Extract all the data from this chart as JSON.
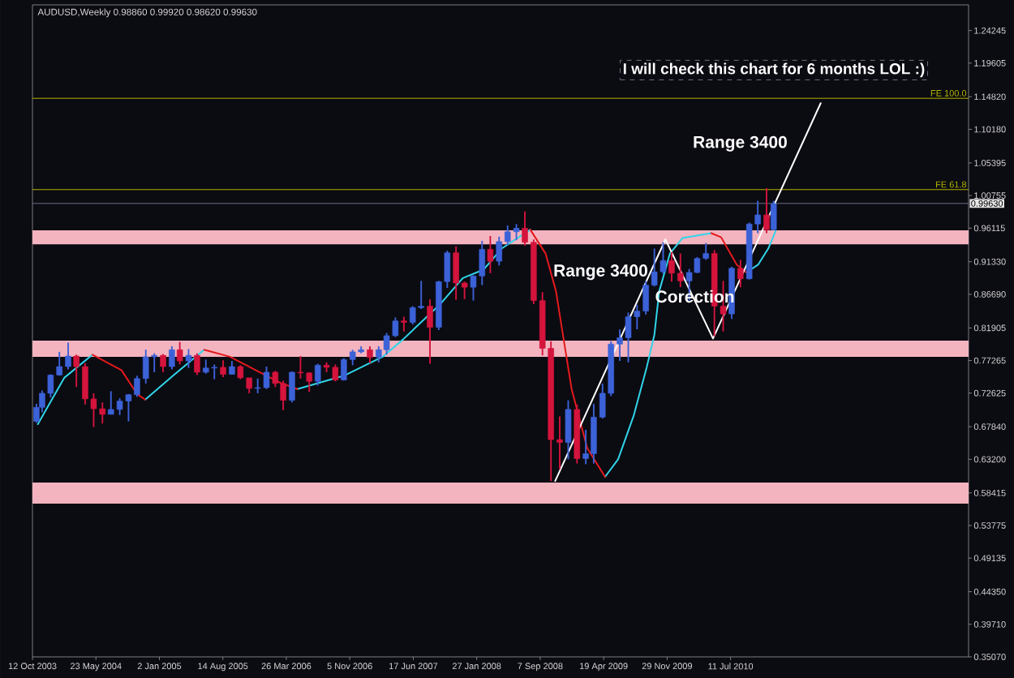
{
  "chart_data": {
    "type": "candlestick",
    "title": "AUDUSD,Weekly 0.98860 0.99920 0.98620 0.99630",
    "x": [
      "2003-10-26",
      "2003-11-15",
      "2003-12-15",
      "2004-01-15",
      "2004-02-15",
      "2004-03-15",
      "2004-04-15",
      "2004-05-15",
      "2004-06-15",
      "2004-07-15",
      "2004-08-15",
      "2004-09-15",
      "2004-10-15",
      "2004-11-15",
      "2004-12-15",
      "2005-01-15",
      "2005-02-15",
      "2005-03-15",
      "2005-04-15",
      "2005-05-15",
      "2005-06-15",
      "2005-07-15",
      "2005-08-15",
      "2005-09-15",
      "2005-10-15",
      "2005-11-15",
      "2005-12-15",
      "2006-01-15",
      "2006-02-15",
      "2006-03-15",
      "2006-04-15",
      "2006-05-15",
      "2006-06-15",
      "2006-07-15",
      "2006-08-15",
      "2006-09-15",
      "2006-10-15",
      "2006-11-15",
      "2006-12-15",
      "2007-01-15",
      "2007-02-15",
      "2007-03-15",
      "2007-04-15",
      "2007-05-15",
      "2007-06-15",
      "2007-07-15",
      "2007-08-15",
      "2007-09-15",
      "2007-10-15",
      "2007-11-15",
      "2007-12-15",
      "2008-01-15",
      "2008-02-15",
      "2008-03-15",
      "2008-04-15",
      "2008-05-15",
      "2008-06-15",
      "2008-07-15",
      "2008-08-15",
      "2008-09-15",
      "2008-10-15",
      "2008-11-15",
      "2008-12-15",
      "2009-01-15",
      "2009-02-15",
      "2009-03-15",
      "2009-04-15",
      "2009-05-15",
      "2009-06-15",
      "2009-07-15",
      "2009-08-15",
      "2009-09-15",
      "2009-10-15",
      "2009-11-15",
      "2009-12-15",
      "2010-01-15",
      "2010-02-15",
      "2010-03-15",
      "2010-04-15",
      "2010-05-15",
      "2010-06-15",
      "2010-07-15",
      "2010-08-15",
      "2010-09-15",
      "2010-10-15",
      "2010-11-15",
      "2010-12-10"
    ],
    "ohlc": [
      [
        0.686,
        0.711,
        0.684,
        0.706
      ],
      [
        0.706,
        0.73,
        0.699,
        0.726
      ],
      [
        0.726,
        0.753,
        0.72,
        0.752
      ],
      [
        0.752,
        0.785,
        0.751,
        0.764
      ],
      [
        0.764,
        0.798,
        0.76,
        0.779
      ],
      [
        0.779,
        0.781,
        0.735,
        0.764
      ],
      [
        0.764,
        0.769,
        0.71,
        0.718
      ],
      [
        0.718,
        0.726,
        0.678,
        0.704
      ],
      [
        0.704,
        0.713,
        0.683,
        0.696
      ],
      [
        0.696,
        0.729,
        0.696,
        0.703
      ],
      [
        0.703,
        0.719,
        0.695,
        0.715
      ],
      [
        0.715,
        0.725,
        0.686,
        0.724
      ],
      [
        0.724,
        0.751,
        0.721,
        0.747
      ],
      [
        0.747,
        0.788,
        0.74,
        0.778
      ],
      [
        0.778,
        0.783,
        0.756,
        0.78
      ],
      [
        0.78,
        0.782,
        0.756,
        0.764
      ],
      [
        0.764,
        0.793,
        0.76,
        0.788
      ],
      [
        0.788,
        0.799,
        0.767,
        0.772
      ],
      [
        0.772,
        0.789,
        0.762,
        0.78
      ],
      [
        0.78,
        0.783,
        0.752,
        0.756
      ],
      [
        0.756,
        0.774,
        0.754,
        0.762
      ],
      [
        0.762,
        0.767,
        0.746,
        0.763
      ],
      [
        0.763,
        0.773,
        0.749,
        0.753
      ],
      [
        0.753,
        0.772,
        0.753,
        0.764
      ],
      [
        0.764,
        0.766,
        0.746,
        0.748
      ],
      [
        0.748,
        0.748,
        0.726,
        0.733
      ],
      [
        0.733,
        0.747,
        0.726,
        0.734
      ],
      [
        0.734,
        0.764,
        0.732,
        0.756
      ],
      [
        0.756,
        0.758,
        0.735,
        0.74
      ],
      [
        0.74,
        0.744,
        0.702,
        0.716
      ],
      [
        0.716,
        0.757,
        0.713,
        0.756
      ],
      [
        0.756,
        0.779,
        0.747,
        0.755
      ],
      [
        0.755,
        0.756,
        0.728,
        0.743
      ],
      [
        0.743,
        0.768,
        0.737,
        0.766
      ],
      [
        0.766,
        0.77,
        0.756,
        0.763
      ],
      [
        0.763,
        0.767,
        0.743,
        0.745
      ],
      [
        0.745,
        0.776,
        0.744,
        0.774
      ],
      [
        0.774,
        0.788,
        0.766,
        0.785
      ],
      [
        0.785,
        0.793,
        0.783,
        0.788
      ],
      [
        0.788,
        0.793,
        0.769,
        0.777
      ],
      [
        0.777,
        0.793,
        0.77,
        0.788
      ],
      [
        0.788,
        0.812,
        0.781,
        0.808
      ],
      [
        0.808,
        0.834,
        0.806,
        0.829
      ],
      [
        0.829,
        0.835,
        0.814,
        0.827
      ],
      [
        0.827,
        0.85,
        0.824,
        0.848
      ],
      [
        0.848,
        0.886,
        0.846,
        0.85
      ],
      [
        0.85,
        0.86,
        0.768,
        0.82
      ],
      [
        0.82,
        0.886,
        0.816,
        0.885
      ],
      [
        0.885,
        0.929,
        0.876,
        0.926
      ],
      [
        0.926,
        0.935,
        0.859,
        0.883
      ],
      [
        0.883,
        0.885,
        0.86,
        0.877
      ],
      [
        0.877,
        0.894,
        0.858,
        0.893
      ],
      [
        0.893,
        0.943,
        0.88,
        0.931
      ],
      [
        0.931,
        0.95,
        0.897,
        0.914
      ],
      [
        0.914,
        0.949,
        0.908,
        0.942
      ],
      [
        0.942,
        0.965,
        0.937,
        0.956
      ],
      [
        0.956,
        0.967,
        0.944,
        0.961
      ],
      [
        0.961,
        0.985,
        0.936,
        0.941
      ],
      [
        0.941,
        0.945,
        0.853,
        0.858
      ],
      [
        0.858,
        0.87,
        0.78,
        0.79
      ],
      [
        0.79,
        0.8,
        0.601,
        0.66
      ],
      [
        0.66,
        0.693,
        0.618,
        0.656
      ],
      [
        0.656,
        0.716,
        0.632,
        0.703
      ],
      [
        0.703,
        0.71,
        0.626,
        0.633
      ],
      [
        0.633,
        0.674,
        0.625,
        0.64
      ],
      [
        0.64,
        0.711,
        0.626,
        0.692
      ],
      [
        0.692,
        0.74,
        0.69,
        0.726
      ],
      [
        0.726,
        0.8,
        0.722,
        0.796
      ],
      [
        0.796,
        0.817,
        0.772,
        0.805
      ],
      [
        0.805,
        0.841,
        0.77,
        0.835
      ],
      [
        0.835,
        0.852,
        0.817,
        0.843
      ],
      [
        0.843,
        0.886,
        0.838,
        0.88
      ],
      [
        0.88,
        0.932,
        0.878,
        0.899
      ],
      [
        0.899,
        0.941,
        0.896,
        0.915
      ],
      [
        0.915,
        0.927,
        0.885,
        0.897
      ],
      [
        0.897,
        0.925,
        0.877,
        0.886
      ],
      [
        0.886,
        0.903,
        0.858,
        0.898
      ],
      [
        0.898,
        0.92,
        0.897,
        0.918
      ],
      [
        0.918,
        0.94,
        0.916,
        0.925
      ],
      [
        0.925,
        0.93,
        0.807,
        0.85
      ],
      [
        0.85,
        0.886,
        0.814,
        0.839
      ],
      [
        0.839,
        0.906,
        0.832,
        0.904
      ],
      [
        0.904,
        0.916,
        0.877,
        0.889
      ],
      [
        0.889,
        0.969,
        0.888,
        0.967
      ],
      [
        0.967,
        1.0,
        0.954,
        0.98
      ],
      [
        0.98,
        1.018,
        0.954,
        0.959
      ],
      [
        0.959,
        1.0,
        0.958,
        0.996
      ]
    ],
    "colors": [
      "#3c62d8",
      "#3c62d8",
      "#3c62d8",
      "#3c62d8",
      "#3c62d8",
      "#d4143c",
      "#d4143c",
      "#d4143c",
      "#d4143c",
      "#3c62d8",
      "#3c62d8",
      "#3c62d8",
      "#3c62d8",
      "#3c62d8",
      "#3c62d8",
      "#d4143c",
      "#3c62d8",
      "#d4143c",
      "#3c62d8",
      "#d4143c",
      "#3c62d8",
      "#3c62d8",
      "#d4143c",
      "#3c62d8",
      "#d4143c",
      "#d4143c",
      "#3c62d8",
      "#3c62d8",
      "#d4143c",
      "#d4143c",
      "#3c62d8",
      "#d4143c",
      "#d4143c",
      "#3c62d8",
      "#d4143c",
      "#d4143c",
      "#3c62d8",
      "#3c62d8",
      "#3c62d8",
      "#d4143c",
      "#3c62d8",
      "#3c62d8",
      "#3c62d8",
      "#d4143c",
      "#3c62d8",
      "#3c62d8",
      "#d4143c",
      "#3c62d8",
      "#3c62d8",
      "#d4143c",
      "#d4143c",
      "#3c62d8",
      "#3c62d8",
      "#d4143c",
      "#3c62d8",
      "#3c62d8",
      "#3c62d8",
      "#d4143c",
      "#d4143c",
      "#d4143c",
      "#d4143c",
      "#d4143c",
      "#3c62d8",
      "#d4143c",
      "#3c62d8",
      "#3c62d8",
      "#3c62d8",
      "#3c62d8",
      "#3c62d8",
      "#3c62d8",
      "#3c62d8",
      "#3c62d8",
      "#3c62d8",
      "#3c62d8",
      "#d4143c",
      "#d4143c",
      "#3c62d8",
      "#3c62d8",
      "#3c62d8",
      "#d4143c",
      "#d4143c",
      "#3c62d8",
      "#d4143c",
      "#3c62d8",
      "#3c62d8",
      "#d4143c",
      "#3c62d8"
    ],
    "xlim": [
      "2003-10-12",
      "2012-10-28"
    ],
    "xticks": [
      {
        "value": "2003-10-12",
        "label": "12 Oct 2003"
      },
      {
        "value": "2004-05-23",
        "label": "23 May 2004"
      },
      {
        "value": "2005-01-02",
        "label": "2 Jan 2005"
      },
      {
        "value": "2005-08-14",
        "label": "14 Aug 2005"
      },
      {
        "value": "2006-03-26",
        "label": "26 Mar 2006"
      },
      {
        "value": "2006-11-05",
        "label": "5 Nov 2006"
      },
      {
        "value": "2007-06-17",
        "label": "17 Jun 2007"
      },
      {
        "value": "2008-01-27",
        "label": "27 Jan 2008"
      },
      {
        "value": "2008-09-07",
        "label": "7 Sep 2008"
      },
      {
        "value": "2009-04-19",
        "label": "19 Apr 2009"
      },
      {
        "value": "2009-11-29",
        "label": "29 Nov 2009"
      },
      {
        "value": "2010-07-11",
        "label": "11 Jul 2010"
      }
    ],
    "ylim": [
      0.3507,
      1.279
    ],
    "yticks": [
      1.24245,
      1.19605,
      {
        "value": 1.1482,
        "label": "1.14820"
      },
      {
        "value": 1.1018,
        "label": "1.10180"
      },
      1.05395,
      1.00755,
      0.96115,
      {
        "value": 0.9133,
        "label": "0.91330"
      },
      {
        "value": 0.8669,
        "label": "0.86690"
      },
      0.81905,
      0.77265,
      0.72625,
      {
        "value": 0.6784,
        "label": "0.67840"
      },
      {
        "value": 0.632,
        "label": "0.63200"
      },
      0.58415,
      0.53775,
      0.49135,
      {
        "value": 0.4435,
        "label": "0.44350"
      },
      {
        "value": 0.3971,
        "label": "0.39710"
      },
      {
        "value": 0.3507,
        "label": "0.35070"
      }
    ],
    "series": [
      {
        "type": "line",
        "color": "#30d5e8",
        "x": [
          "2003-10-31",
          "2004-02-01",
          "2004-05-11",
          "2004-08-01",
          "2004-11-13",
          "2005-02-19",
          "2005-06-09",
          "2005-10-01",
          "2006-05-04",
          "2006-10-15",
          "2007-03-01",
          "2007-05-10",
          "2007-09-18",
          "2007-12-09",
          "2008-02-20",
          "2008-04-24",
          "2008-08-03",
          "2008-12-01",
          "2009-04-24",
          "2009-06-09",
          "2009-08-03",
          "2009-09-18",
          "2009-10-15",
          "2009-11-01",
          "2009-12-09",
          "2010-01-22",
          "2010-05-04",
          "2010-07-01",
          "2010-09-05",
          "2010-10-16",
          "2010-11-21",
          "2010-12-17"
        ],
        "values": [
          0.682,
          0.748,
          0.781,
          null,
          0.717,
          0.751,
          0.788,
          null,
          0.732,
          0.751,
          0.778,
          0.802,
          0.852,
          0.89,
          0.902,
          0.932,
          0.959,
          null,
          0.607,
          0.632,
          0.694,
          0.763,
          0.809,
          0.871,
          0.925,
          0.947,
          0.954,
          null,
          0.898,
          0.909,
          0.932,
          0.957
        ]
      },
      {
        "type": "line",
        "color": "#e41a1c",
        "x": [
          "2004-05-11",
          "2004-08-21",
          "2004-10-15",
          "2004-11-13",
          "2005-02-01",
          "2005-06-09",
          "2005-09-08",
          "2005-12-27",
          "2006-03-10",
          "2006-05-04",
          "2007-01-01",
          "2008-08-03",
          "2008-09-26",
          "2008-11-02",
          "2008-11-20",
          "2008-12-27",
          "2009-02-20",
          "2009-04-24",
          "2009-10-01",
          "2010-05-04",
          "2010-06-08",
          "2010-08-02",
          "2010-09-05"
        ],
        "values": [
          0.781,
          0.759,
          0.725,
          0.717,
          null,
          0.788,
          0.778,
          0.755,
          0.74,
          0.732,
          null,
          0.959,
          0.925,
          0.871,
          0.825,
          0.732,
          0.648,
          0.607,
          null,
          0.954,
          0.948,
          0.909,
          0.898
        ]
      },
      {
        "type": "line",
        "color": "#ffffff",
        "x": [
          "2008-10-30",
          "2009-11-23",
          "2010-05-10",
          "2011-05-25"
        ],
        "values": [
          0.601,
          0.945,
          0.804,
          1.139
        ]
      }
    ],
    "ref_lines": [
      {
        "axis": "y",
        "value": 0.9963,
        "label": "0.99630",
        "color": "#6b7080"
      },
      {
        "axis": "y",
        "value": 1.146,
        "label": "FE 100.0",
        "color": "#b4b400"
      },
      {
        "axis": "y",
        "value": 1.016,
        "label": "FE 61.8",
        "color": "#b4b400"
      }
    ],
    "bands": [
      {
        "axis": "y",
        "from": 0.938,
        "to": 0.958,
        "color": "#f4b4bf"
      },
      {
        "axis": "y",
        "from": 0.778,
        "to": 0.801,
        "color": "#f4b4bf"
      },
      {
        "axis": "y",
        "from": 0.569,
        "to": 0.599,
        "color": "#f4b4bf"
      }
    ],
    "annotations": [
      "Range 3400",
      {
        "text": "Corection",
        "x": "2010-03-07",
        "y": 0.864
      },
      "Range 3400",
      "I will check this chart for 6 months LOL :)"
    ]
  }
}
